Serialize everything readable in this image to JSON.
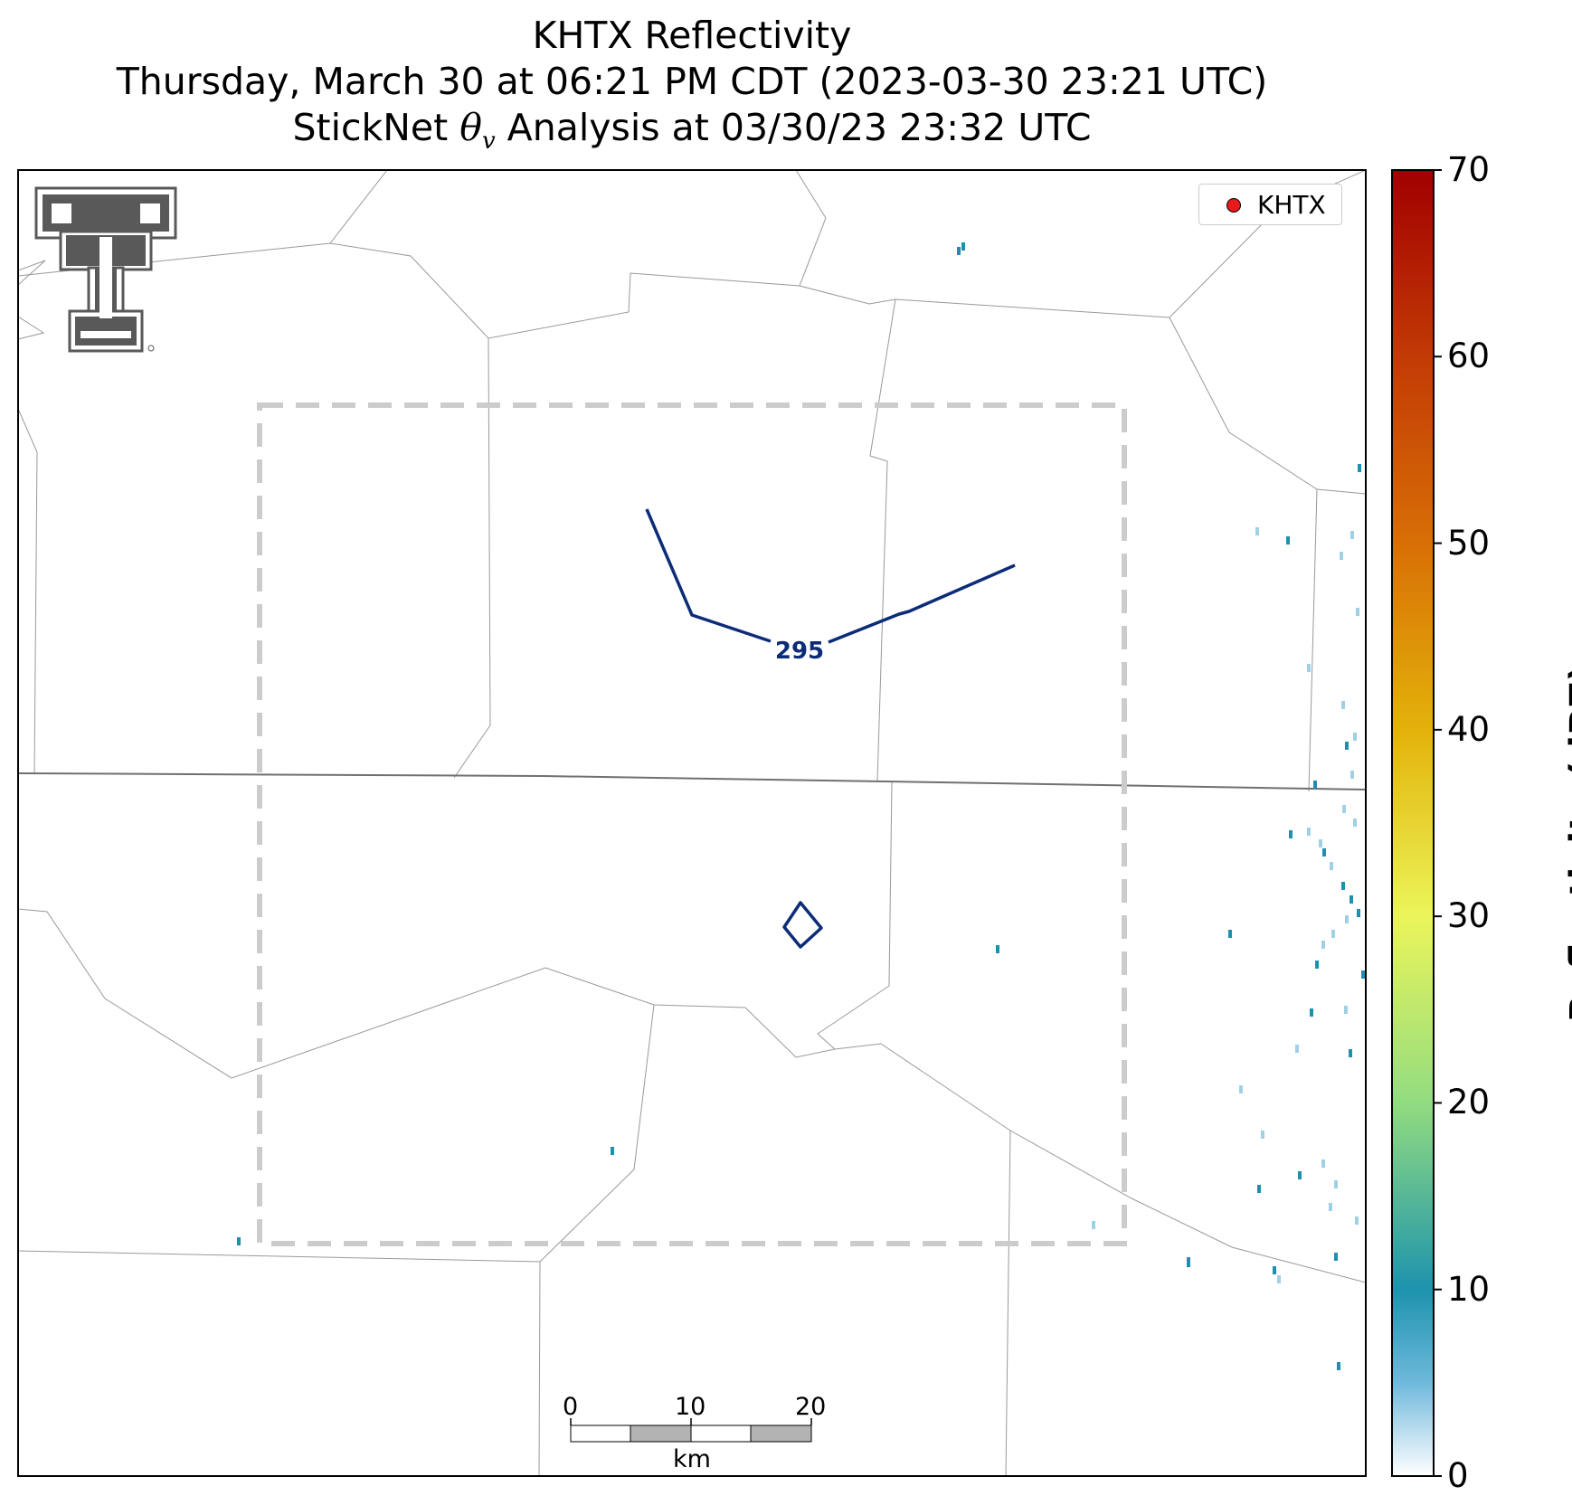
{
  "title": {
    "line1": "KHTX Reflectivity",
    "line2": "Thursday, March 30 at 06:21 PM CDT (2023-03-30 23:21 UTC)",
    "line3_prefix": "StickNet ",
    "line3_symbol": "θ",
    "line3_subscript": "v",
    "line3_suffix": " Analysis at 03/30/23 23:32 UTC"
  },
  "legend": {
    "label": "KHTX",
    "marker_color": "#e8191a"
  },
  "contour": {
    "label": "295",
    "value": 295,
    "color": "#0c2c78"
  },
  "scale_bar": {
    "ticks": [
      "0",
      "10",
      "20"
    ],
    "unit": "km"
  },
  "colorbar": {
    "title": "Reflectivity (dBZ)",
    "ticks": [
      "0",
      "10",
      "20",
      "30",
      "40",
      "50",
      "60",
      "70"
    ],
    "min": 0,
    "max": 70,
    "stops": [
      {
        "value": 0,
        "color": "#ffffff"
      },
      {
        "value": 5,
        "color": "#6fb9dc"
      },
      {
        "value": 10,
        "color": "#1d93ad"
      },
      {
        "value": 20,
        "color": "#92dc80"
      },
      {
        "value": 30,
        "color": "#ebf55a"
      },
      {
        "value": 40,
        "color": "#e3b20a"
      },
      {
        "value": 50,
        "color": "#d86f06"
      },
      {
        "value": 60,
        "color": "#c23a05"
      },
      {
        "value": 70,
        "color": "#a10000"
      }
    ]
  },
  "colors": {
    "county_lines": "#999999",
    "state_line": "#707070",
    "analysis_box": "#cccccc",
    "logo": "#595959"
  }
}
